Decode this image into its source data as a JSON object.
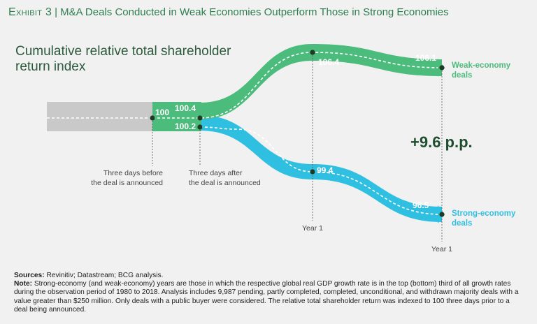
{
  "title": {
    "label": "Exhibit 3",
    "separator": "|",
    "text": "M&A Deals Conducted in Weak Economies Outperform Those in Strong Economies"
  },
  "colors": {
    "weak": "#4cbc7c",
    "strong": "#2fbfe0",
    "baseline": "#c9c9c9",
    "title": "#2e7d4f",
    "diff": "#1f4e2f"
  },
  "chart_data": {
    "type": "line",
    "title": "Cumulative relative total shareholder return index",
    "title_lines": [
      "Cumulative relative total shareholder",
      "return index"
    ],
    "categories": [
      "Three days before the deal is announced",
      "Three days after the deal is announced",
      "Year 1",
      "Year 1"
    ],
    "category_label_lines": [
      [
        "Three days before",
        "the deal is announced"
      ],
      [
        "Three days after",
        "the deal is announced"
      ],
      [
        "Year 1"
      ],
      [
        "Year 1"
      ]
    ],
    "series": [
      {
        "name": "Weak-economy deals",
        "name_lines": [
          "Weak-economy",
          "deals"
        ],
        "values": [
          100,
          100.4,
          106.4,
          106.1
        ],
        "labels": [
          "100",
          "100.4",
          "106.4",
          "106.1"
        ]
      },
      {
        "name": "Strong-economy deals",
        "name_lines": [
          "Strong-economy",
          "deals"
        ],
        "values": [
          100,
          100.2,
          99.4,
          96.5
        ],
        "labels": [
          "100",
          "100.2",
          "99.4",
          "96.5"
        ]
      }
    ],
    "difference_label": "+9.6 p.p.",
    "ylim": [
      95,
      108
    ]
  },
  "footer": {
    "sources_label": "Sources:",
    "sources_text": "Revinitiv; Datastream; BCG analysis.",
    "note_label": "Note:",
    "note_text": "Strong-economy (and weak-economy) years are those in which the respective global real GDP growth rate is in the top (bottom) third of all growth rates during the observation period of 1980 to 2018. Analysis includes 9,987 pending, partly completed, completed, unconditional, and withdrawn majority deals with a value greater than $250 million. Only deals with a public buyer were considered. The relative total shareholder return was indexed to 100 three days prior to a deal being announced."
  }
}
